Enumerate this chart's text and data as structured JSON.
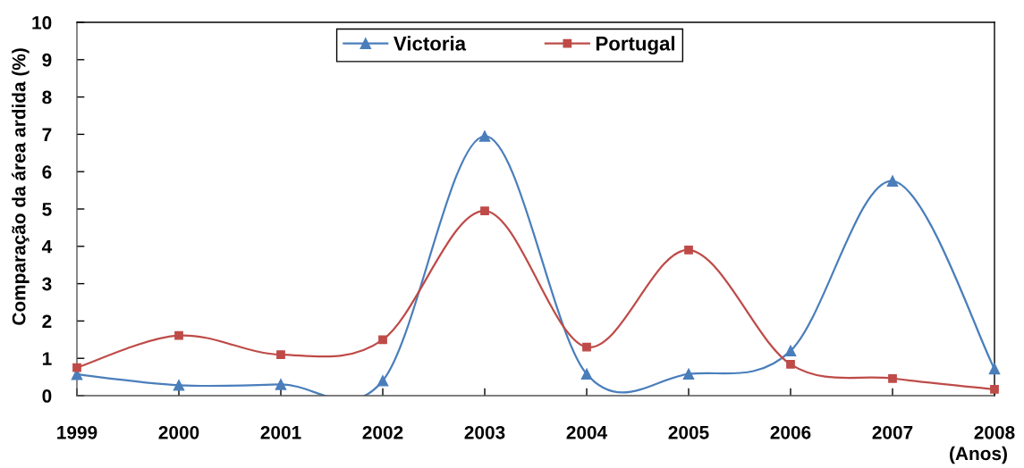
{
  "chart_data": {
    "type": "line",
    "xlabel": "(Anos)",
    "ylabel": "Comparação da área ardida (%)",
    "x": [
      1999,
      2000,
      2001,
      2002,
      2003,
      2004,
      2005,
      2006,
      2007,
      2008
    ],
    "xlim": [
      1999,
      2008
    ],
    "xticks": [
      1999,
      2000,
      2001,
      2002,
      2003,
      2004,
      2005,
      2006,
      2007,
      2008
    ],
    "ylim": [
      0,
      10
    ],
    "yticks": [
      0,
      1,
      2,
      3,
      4,
      5,
      6,
      7,
      8,
      9,
      10
    ],
    "legend": "top",
    "series": [
      {
        "name": "Victoria",
        "color": "#4a7ebb",
        "marker": "triangle",
        "values": [
          0.57,
          0.28,
          0.3,
          0.4,
          6.95,
          0.58,
          0.58,
          1.2,
          5.75,
          0.72
        ]
      },
      {
        "name": "Portugal",
        "color": "#be4b48",
        "marker": "square",
        "values": [
          0.75,
          1.61,
          1.1,
          1.5,
          4.95,
          1.3,
          3.9,
          0.84,
          0.46,
          0.17
        ]
      }
    ]
  }
}
